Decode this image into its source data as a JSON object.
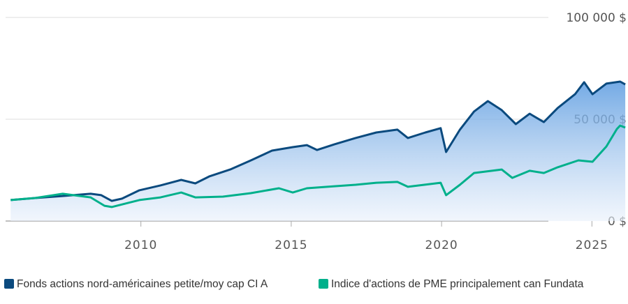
{
  "chart_data": {
    "type": "line",
    "xlim": [
      2005.5,
      2026.2
    ],
    "xticks": [
      2010,
      2015,
      2020,
      2025
    ],
    "ylim": [
      0,
      100000
    ],
    "yticks": [
      {
        "value": 0,
        "label": "0 $"
      },
      {
        "value": 50000,
        "label": "50 000 $"
      },
      {
        "value": 100000,
        "label": "100 000 $"
      }
    ],
    "grid": true,
    "legend": "bottom",
    "series": [
      {
        "name": "Fonds actions nord-américaines petite/moy cap CI A",
        "color": "#0b4a7e",
        "area": true,
        "x": [
          2005.67,
          2006.48,
          2007.4,
          2008.33,
          2008.68,
          2009.03,
          2009.37,
          2009.95,
          2010.65,
          2011.34,
          2011.81,
          2012.27,
          2012.97,
          2013.66,
          2014.36,
          2015.05,
          2015.52,
          2015.86,
          2016.44,
          2017.14,
          2017.83,
          2018.53,
          2018.88,
          2019.46,
          2019.97,
          2020.15,
          2020.61,
          2021.08,
          2021.54,
          2022.0,
          2022.47,
          2022.93,
          2023.4,
          2023.86,
          2024.44,
          2024.74,
          2025.02,
          2025.48,
          2025.94,
          2026.11
        ],
        "values": [
          10300,
          11300,
          12300,
          13400,
          12700,
          9900,
          11000,
          15100,
          17500,
          20200,
          18500,
          21900,
          25300,
          29800,
          34600,
          36300,
          37300,
          34900,
          37700,
          40800,
          43500,
          44900,
          40800,
          43500,
          45600,
          33900,
          44900,
          53800,
          58900,
          54500,
          47600,
          52700,
          48600,
          55500,
          62300,
          68200,
          62300,
          67500,
          68500,
          67100
        ]
      },
      {
        "name": "Indice d'actions de PME principalement can Fundata",
        "color": "#00b08b",
        "x": [
          2005.67,
          2006.48,
          2007.4,
          2008.33,
          2008.79,
          2009.03,
          2009.95,
          2010.65,
          2011.34,
          2011.81,
          2012.73,
          2013.66,
          2014.59,
          2015.05,
          2015.52,
          2016.44,
          2017.14,
          2017.83,
          2018.53,
          2018.88,
          2019.97,
          2020.15,
          2020.61,
          2021.08,
          2022.0,
          2022.35,
          2022.93,
          2023.4,
          2023.86,
          2024.55,
          2025.02,
          2025.48,
          2025.83,
          2025.94,
          2026.11
        ],
        "values": [
          10300,
          11300,
          13400,
          11600,
          7500,
          6900,
          10300,
          11600,
          14000,
          11600,
          12000,
          13700,
          16100,
          14000,
          16100,
          17100,
          17800,
          18800,
          19200,
          16800,
          18800,
          12700,
          17800,
          23600,
          25300,
          21200,
          24700,
          23600,
          26400,
          29800,
          29100,
          36600,
          45200,
          46900,
          45900
        ]
      }
    ]
  }
}
